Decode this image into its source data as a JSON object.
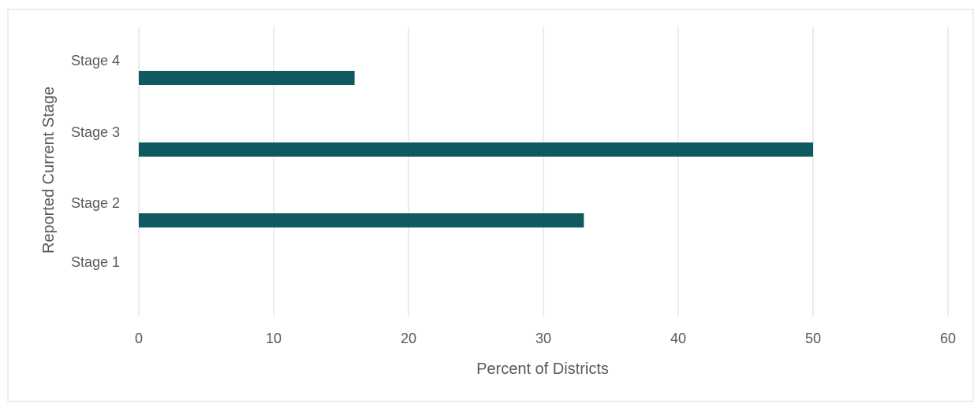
{
  "colors": {
    "bar": "#0f5961",
    "gridline": "#d9d9d9",
    "text": "#595959",
    "title": "#0a5a91",
    "border": "#d9d9d9"
  },
  "chart_data": {
    "type": "bar",
    "orientation": "horizontal",
    "title": "",
    "categories": [
      "Stage 1",
      "Stage 2",
      "Stage 3",
      "Stage 4"
    ],
    "values": [
      0,
      33,
      50,
      16
    ],
    "xlabel": "Percent of Districts",
    "ylabel": "Reported Current Stage",
    "xlim": [
      0,
      60
    ],
    "xticks": [
      "0",
      "10",
      "20",
      "30",
      "40",
      "50",
      "60"
    ],
    "grid": "vertical",
    "legend": "none"
  }
}
